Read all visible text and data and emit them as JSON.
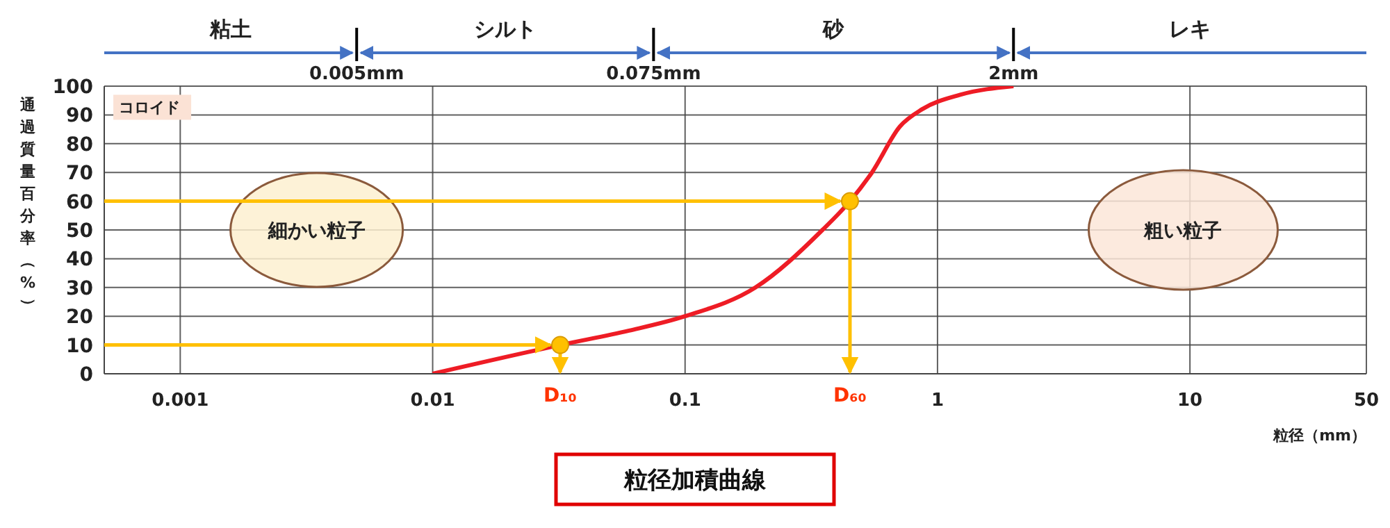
{
  "chart_data": {
    "type": "line",
    "title": "粒径加積曲線",
    "xlabel": "粒径（mm）",
    "ylabel": "通過質量百分率（%）",
    "x": [
      0.01,
      0.032,
      0.06,
      0.1,
      0.19,
      0.35,
      0.45,
      0.55,
      0.71,
      0.87,
      1.23,
      2
    ],
    "series": [
      {
        "color": "#ee1c25",
        "values": [
          0,
          10,
          15,
          20,
          30,
          50,
          60,
          70,
          86,
          92,
          97,
          100
        ]
      }
    ],
    "log": "x",
    "xlim": [
      0.0005,
      50
    ],
    "xticks": [
      0.001,
      0.01,
      0.1,
      1,
      10,
      50
    ],
    "ylim": [
      0,
      100
    ],
    "yticks": [
      0,
      10,
      20,
      30,
      40,
      50,
      60,
      70,
      80,
      90,
      100
    ],
    "grid": true,
    "ref_lines": [
      {
        "axis": "x",
        "value": 0.005,
        "label": "0.005mm",
        "color": "#000000"
      },
      {
        "axis": "x",
        "value": 0.075,
        "label": "0.075mm",
        "color": "#000000"
      },
      {
        "axis": "x",
        "value": 2,
        "label": "2mm",
        "color": "#000000"
      }
    ],
    "annotations": [
      "粘土",
      "シルト",
      "砂",
      "レキ",
      "コロイド",
      "細かい粒子",
      "粗い粒子",
      {
        "text": "D₁₀",
        "x": 0.032,
        "y": 10
      },
      {
        "text": "D₆₀",
        "x": 0.45,
        "y": 60
      }
    ]
  }
}
